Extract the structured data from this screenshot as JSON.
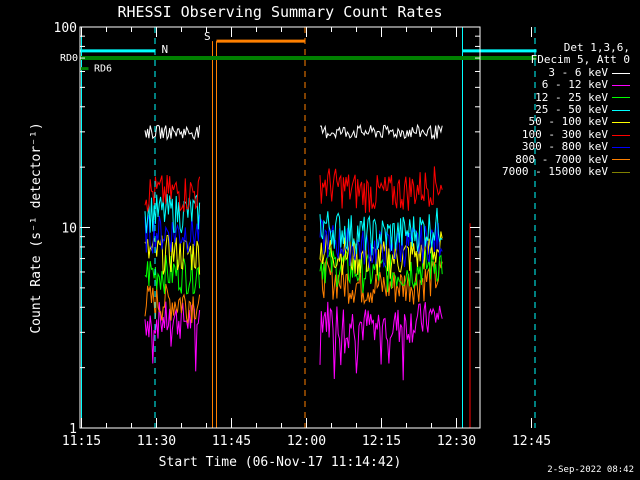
{
  "chart_data": {
    "type": "line",
    "title": "RHESSI Observing Summary Count Rates",
    "xlabel": "Start Time (06-Nov-17 11:14:42)",
    "ylabel": "Count Rate (s⁻¹ detector⁻¹)",
    "yscale": "log",
    "ylim": [
      1,
      100
    ],
    "xlim_minutes": [
      0,
      80
    ],
    "yticks": [
      {
        "value": 1,
        "label": "1"
      },
      {
        "value": 10,
        "label": "10"
      },
      {
        "value": 100,
        "label": "100"
      }
    ],
    "xticks": [
      {
        "minute": 0.3,
        "label": "11:15"
      },
      {
        "minute": 15.3,
        "label": "11:30"
      },
      {
        "minute": 30.3,
        "label": "11:45"
      },
      {
        "minute": 45.3,
        "label": "12:00"
      },
      {
        "minute": 60.3,
        "label": "12:15"
      },
      {
        "minute": 75.3,
        "label": "12:30"
      },
      {
        "minute": 90.3,
        "label": "12:45"
      }
    ],
    "legend_header": [
      "Det 1,3,6,",
      "FDecim 5, Att 0"
    ],
    "data_segments": [
      {
        "start_minute": 13.0,
        "end_minute": 24.0
      },
      {
        "start_minute": 48.0,
        "end_minute": 72.5
      }
    ],
    "series": [
      {
        "name": "3 - 6 keV",
        "color": "#ffffff",
        "level1": 30,
        "level2": 30
      },
      {
        "name": "6 - 12 keV",
        "color": "#ff00ff",
        "level1": 3.5,
        "level2": 3.7
      },
      {
        "name": "12 - 25 keV",
        "color": "#00ff00",
        "level1": 6.0,
        "level2": 6.8
      },
      {
        "name": "25 - 50 keV",
        "color": "#00ffff",
        "level1": 12.0,
        "level2": 10.5
      },
      {
        "name": "50 - 100 keV",
        "color": "#ffff00",
        "level1": 7.5,
        "level2": 8.0
      },
      {
        "name": "100 - 300 keV",
        "color": "#ff0000",
        "level1": 15.0,
        "level2": 17.0
      },
      {
        "name": "300 - 800 keV",
        "color": "#0000ff",
        "level1": 9.5,
        "level2": 9.0
      },
      {
        "name": "800 - 7000 keV",
        "color": "#ff8000",
        "level1": 4.3,
        "level2": 5.8
      },
      {
        "name": "7000 - 15000 keV",
        "color": "#808000",
        "level1": 0,
        "level2": 0
      }
    ],
    "annotations": {
      "N": {
        "label": "N",
        "color": "#00ffff",
        "start_minute": 0,
        "end_minute": 76.5,
        "solid_marks": [
          0.3,
          76.5
        ],
        "dashed_marks": [
          15,
          91
        ],
        "value": 76
      },
      "S": {
        "label": "S",
        "color": "#ff8000",
        "start_minute": 27.3,
        "end_minute": 45.0,
        "solid_marks": [
          26.5,
          27.3
        ],
        "dashed_marks": [
          45.0
        ],
        "value": 85
      },
      "RD0": {
        "label": "RD0",
        "color": "#008000",
        "start_minute": 0,
        "end_minute": 91.3,
        "value": 70
      },
      "RD6": {
        "label": "RD6",
        "color": "#008000",
        "start_minute": 0,
        "end_minute": 1.7,
        "value": 62
      },
      "red_mark_minute": 78.0
    }
  },
  "generated": "2-Sep-2022 08:42"
}
